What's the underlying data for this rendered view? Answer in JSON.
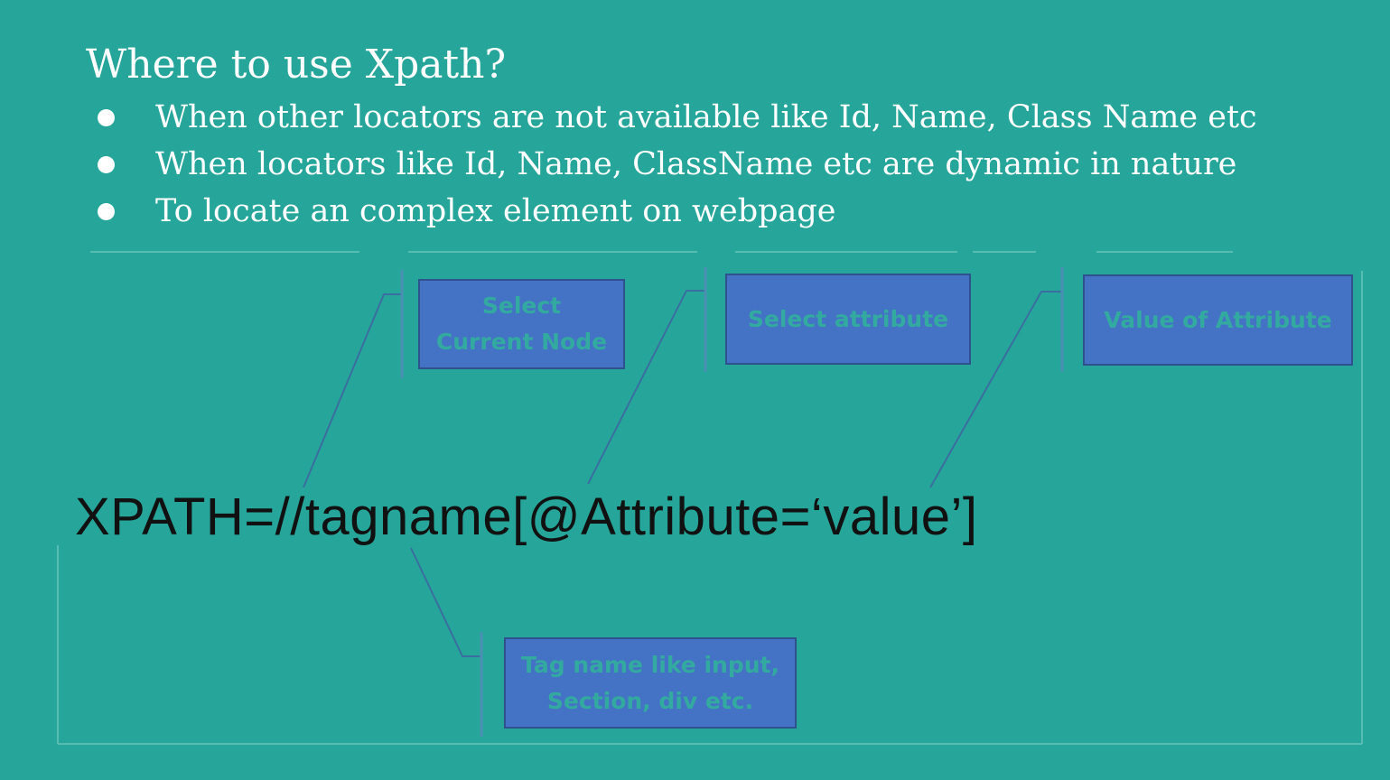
{
  "slide": {
    "title": "Where to use Xpath?",
    "bullets": [
      "When other locators are not available like Id, Name, Class Name etc",
      "When locators like Id, Name, ClassName etc are dynamic in nature",
      "To locate an complex element on webpage"
    ]
  },
  "diagram": {
    "expression": "XPATH=//tagname[@Attribute=‘value’]",
    "callouts": {
      "current_node": [
        "Select",
        "Current Node"
      ],
      "attribute": "Select attribute",
      "value": "Value of Attribute",
      "tagname": [
        "Tag name like input,",
        "Section, div etc."
      ]
    }
  },
  "colors": {
    "background": "#26a69a",
    "callout_fill": "#4472c4",
    "callout_text": "#33aaa0",
    "expression_text": "#111111"
  }
}
